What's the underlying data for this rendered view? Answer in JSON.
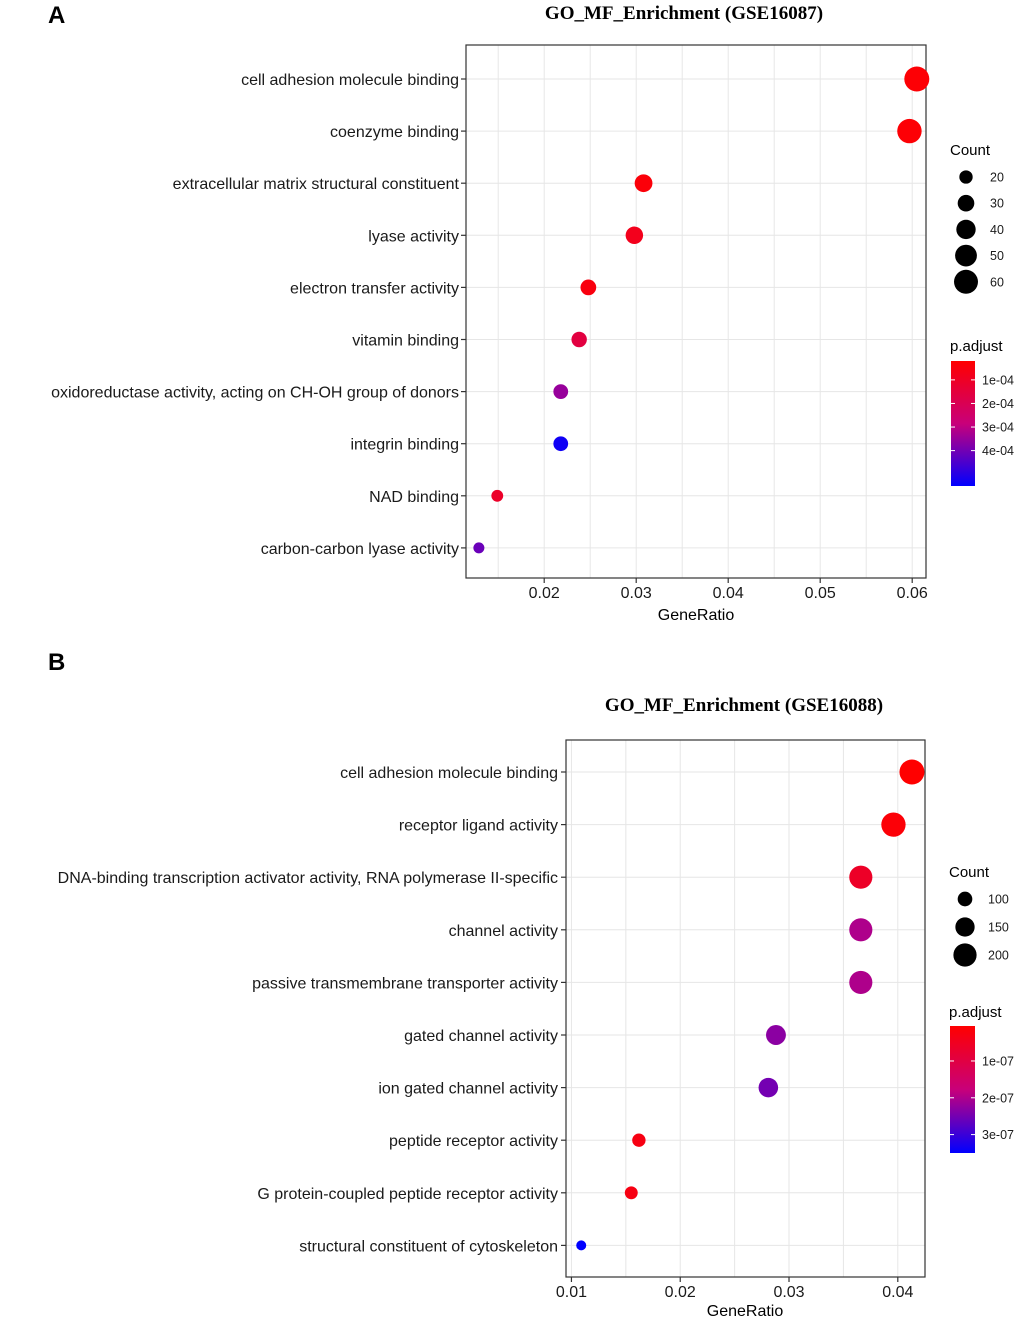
{
  "chart_data": [
    {
      "type": "scatter",
      "panel_label": "A",
      "title": "GO_MF_Enrichment (GSE16087)",
      "xlabel": "GeneRatio",
      "ylabel": "",
      "xlim": [
        0.0115,
        0.0615
      ],
      "xticks": [
        0.02,
        0.03,
        0.04,
        0.05,
        0.06
      ],
      "xtick_labels": [
        "0.02",
        "0.03",
        "0.04",
        "0.05",
        "0.06"
      ],
      "grid": true,
      "points": [
        {
          "term": "cell adhesion molecule binding",
          "gene_ratio": 0.0605,
          "count": 65,
          "p_adjust": 3e-05
        },
        {
          "term": "coenzyme binding",
          "gene_ratio": 0.0597,
          "count": 62,
          "p_adjust": 3e-05
        },
        {
          "term": "extracellular matrix structural constituent",
          "gene_ratio": 0.0308,
          "count": 34,
          "p_adjust": 4e-05
        },
        {
          "term": "lyase activity",
          "gene_ratio": 0.0298,
          "count": 33,
          "p_adjust": 8e-05
        },
        {
          "term": "electron transfer activity",
          "gene_ratio": 0.0248,
          "count": 27,
          "p_adjust": 5e-05
        },
        {
          "term": "vitamin binding",
          "gene_ratio": 0.0238,
          "count": 26,
          "p_adjust": 0.00016
        },
        {
          "term": "oxidoreductase activity, acting on CH-OH group of donors",
          "gene_ratio": 0.0218,
          "count": 24,
          "p_adjust": 0.00035
        },
        {
          "term": "integrin binding",
          "gene_ratio": 0.0218,
          "count": 24,
          "p_adjust": 0.00053
        },
        {
          "term": "NAD binding",
          "gene_ratio": 0.0149,
          "count": 16,
          "p_adjust": 0.00011
        },
        {
          "term": "carbon-carbon lyase activity",
          "gene_ratio": 0.0129,
          "count": 14,
          "p_adjust": 0.00041
        }
      ],
      "size_legend": {
        "title": "Count",
        "values": [
          20,
          30,
          40,
          50,
          60
        ],
        "labels": [
          "20",
          "30",
          "40",
          "50",
          "60"
        ]
      },
      "color_legend": {
        "title": "p.adjust",
        "range": [
          2e-05,
          0.00055
        ],
        "ticks": [
          0.0001,
          0.0002,
          0.0003,
          0.0004
        ],
        "labels": [
          "1e-04",
          "2e-04",
          "3e-04",
          "4e-04"
        ],
        "low_color": "#ff0000",
        "high_color": "#0000ff"
      }
    },
    {
      "type": "scatter",
      "panel_label": "B",
      "title": "GO_MF_Enrichment (GSE16088)",
      "xlabel": "GeneRatio",
      "ylabel": "",
      "xlim": [
        0.0095,
        0.0425
      ],
      "xticks": [
        0.01,
        0.02,
        0.03,
        0.04
      ],
      "xtick_labels": [
        "0.01",
        "0.02",
        "0.03",
        "0.04"
      ],
      "grid": true,
      "points": [
        {
          "term": "cell adhesion molecule binding",
          "gene_ratio": 0.0413,
          "count": 225,
          "p_adjust": 5e-09
        },
        {
          "term": "receptor ligand activity",
          "gene_ratio": 0.0396,
          "count": 215,
          "p_adjust": 1.5e-08
        },
        {
          "term": "DNA-binding transcription activator activity, RNA polymerase II-specific",
          "gene_ratio": 0.0366,
          "count": 199,
          "p_adjust": 6e-08
        },
        {
          "term": "channel activity",
          "gene_ratio": 0.0366,
          "count": 199,
          "p_adjust": 2e-07
        },
        {
          "term": "passive transmembrane transporter activity",
          "gene_ratio": 0.0366,
          "count": 199,
          "p_adjust": 2e-07
        },
        {
          "term": "gated channel activity",
          "gene_ratio": 0.0288,
          "count": 157,
          "p_adjust": 2.3e-07
        },
        {
          "term": "ion gated channel activity",
          "gene_ratio": 0.0281,
          "count": 153,
          "p_adjust": 2.5e-07
        },
        {
          "term": "peptide receptor activity",
          "gene_ratio": 0.0162,
          "count": 88,
          "p_adjust": 3e-08
        },
        {
          "term": "G protein-coupled peptide receptor activity",
          "gene_ratio": 0.0155,
          "count": 84,
          "p_adjust": 3e-08
        },
        {
          "term": "structural constituent of cytoskeleton",
          "gene_ratio": 0.0109,
          "count": 60,
          "p_adjust": 3.5e-07
        }
      ],
      "size_legend": {
        "title": "Count",
        "values": [
          100,
          150,
          200
        ],
        "labels": [
          "100",
          "150",
          "200"
        ]
      },
      "color_legend": {
        "title": "p.adjust",
        "range": [
          5e-09,
          3.5e-07
        ],
        "ticks": [
          1e-07,
          2e-07,
          3e-07
        ],
        "labels": [
          "1e-07",
          "2e-07",
          "3e-07"
        ],
        "low_color": "#ff0000",
        "high_color": "#0000ff"
      }
    }
  ]
}
